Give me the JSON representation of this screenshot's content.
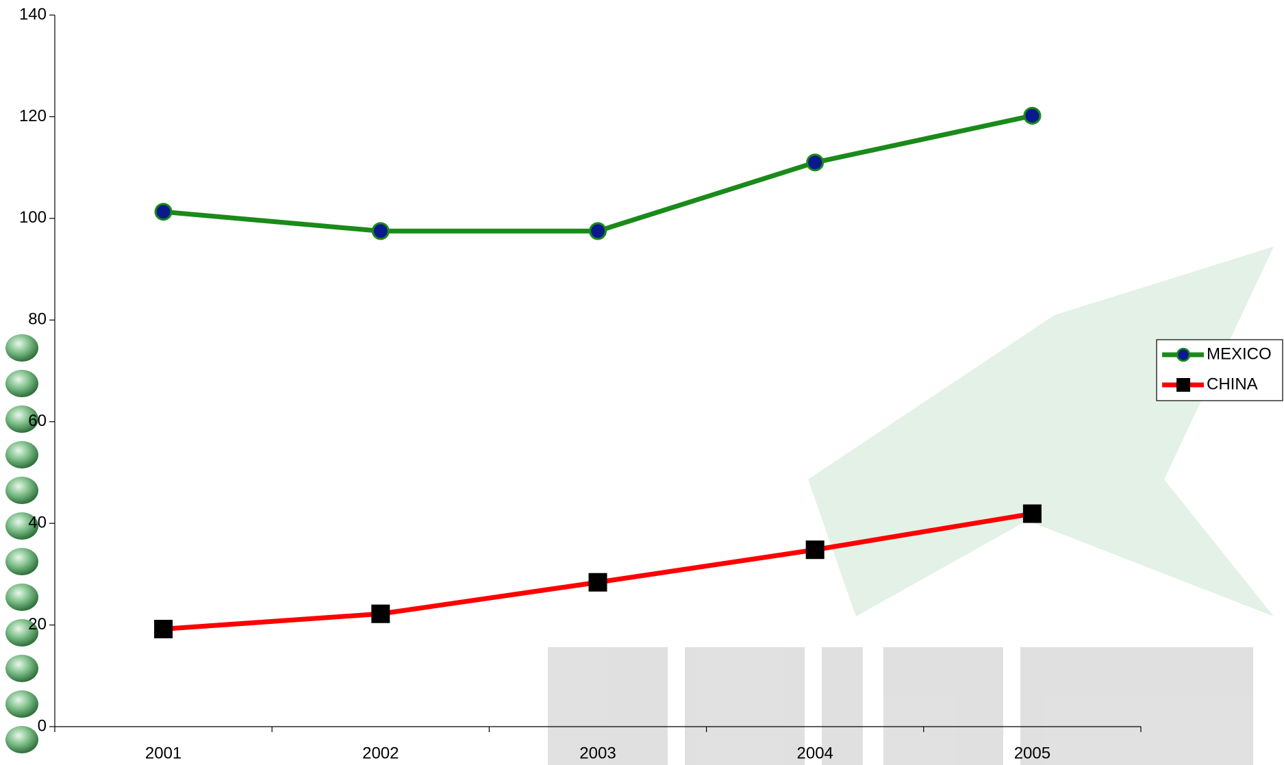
{
  "chart_data": {
    "type": "line",
    "categories": [
      "2001",
      "2002",
      "2003",
      "2004",
      "2005"
    ],
    "series": [
      {
        "name": "MEXICO",
        "color": "#1a8a1a",
        "marker": "circle",
        "marker_color": "#0a1a8c",
        "values": [
          101.3,
          97.5,
          97.5,
          111,
          120.2
        ]
      },
      {
        "name": "CHINA",
        "color": "#ff0000",
        "marker": "square",
        "marker_color": "#000000",
        "values": [
          19.2,
          22.2,
          28.4,
          34.8,
          41.9
        ]
      }
    ],
    "ylim": [
      0,
      140
    ],
    "yticks": [
      0,
      20,
      40,
      60,
      80,
      100,
      120,
      140
    ],
    "grid": false,
    "legend": "right"
  }
}
